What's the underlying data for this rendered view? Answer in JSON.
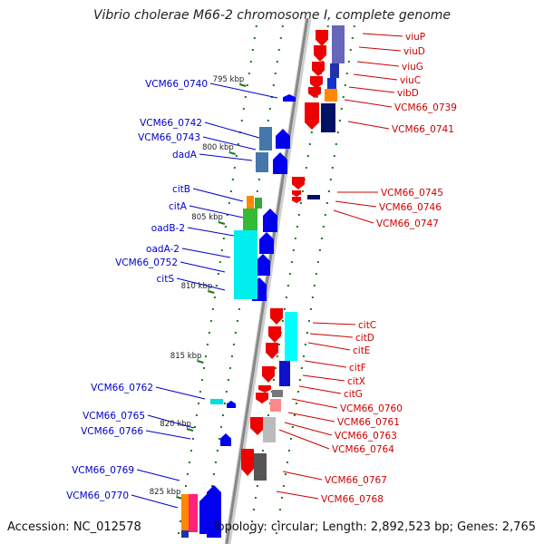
{
  "title": "Vibrio cholerae M66-2 chromosome I, complete genome",
  "accession": "Accession: NC_012578",
  "topology": "Topology: circular; Length: 2,892,523 bp; Genes: 2,765",
  "colors": {
    "plus_label": "#0000cc",
    "minus_label": "#cc0000",
    "backbone": "#888888",
    "tick": "#1a7a1a"
  },
  "scale_labels": [
    {
      "text": "795 kbp",
      "bp": 795000
    },
    {
      "text": "800 kbp",
      "bp": 800000
    },
    {
      "text": "805 kbp",
      "bp": 805000
    },
    {
      "text": "810 kbp",
      "bp": 810000
    },
    {
      "text": "815 kbp",
      "bp": 815000
    },
    {
      "text": "820 kbp",
      "bp": 820000
    },
    {
      "text": "825 kbp",
      "bp": 825000
    }
  ],
  "genes_plus": [
    {
      "name": "VCM66_0740"
    },
    {
      "name": "VCM66_0742"
    },
    {
      "name": "VCM66_0743"
    },
    {
      "name": "dadA"
    },
    {
      "name": "citB"
    },
    {
      "name": "citA"
    },
    {
      "name": "oadB-2"
    },
    {
      "name": "oadA-2"
    },
    {
      "name": "VCM66_0752"
    },
    {
      "name": "citS"
    },
    {
      "name": "VCM66_0762"
    },
    {
      "name": "VCM66_0765"
    },
    {
      "name": "VCM66_0766"
    },
    {
      "name": "VCM66_0769"
    },
    {
      "name": "VCM66_0770"
    }
  ],
  "genes_minus": [
    {
      "name": "viuP"
    },
    {
      "name": "viuD"
    },
    {
      "name": "viuG"
    },
    {
      "name": "viuC"
    },
    {
      "name": "vibD"
    },
    {
      "name": "VCM66_0739"
    },
    {
      "name": "VCM66_0741"
    },
    {
      "name": "VCM66_0745"
    },
    {
      "name": "VCM66_0746"
    },
    {
      "name": "VCM66_0747"
    },
    {
      "name": "citC"
    },
    {
      "name": "citD"
    },
    {
      "name": "citE"
    },
    {
      "name": "citF"
    },
    {
      "name": "citX"
    },
    {
      "name": "citG"
    },
    {
      "name": "VCM66_0760"
    },
    {
      "name": "VCM66_0761"
    },
    {
      "name": "VCM66_0763"
    },
    {
      "name": "VCM66_0764"
    },
    {
      "name": "VCM66_0767"
    },
    {
      "name": "VCM66_0768"
    }
  ]
}
